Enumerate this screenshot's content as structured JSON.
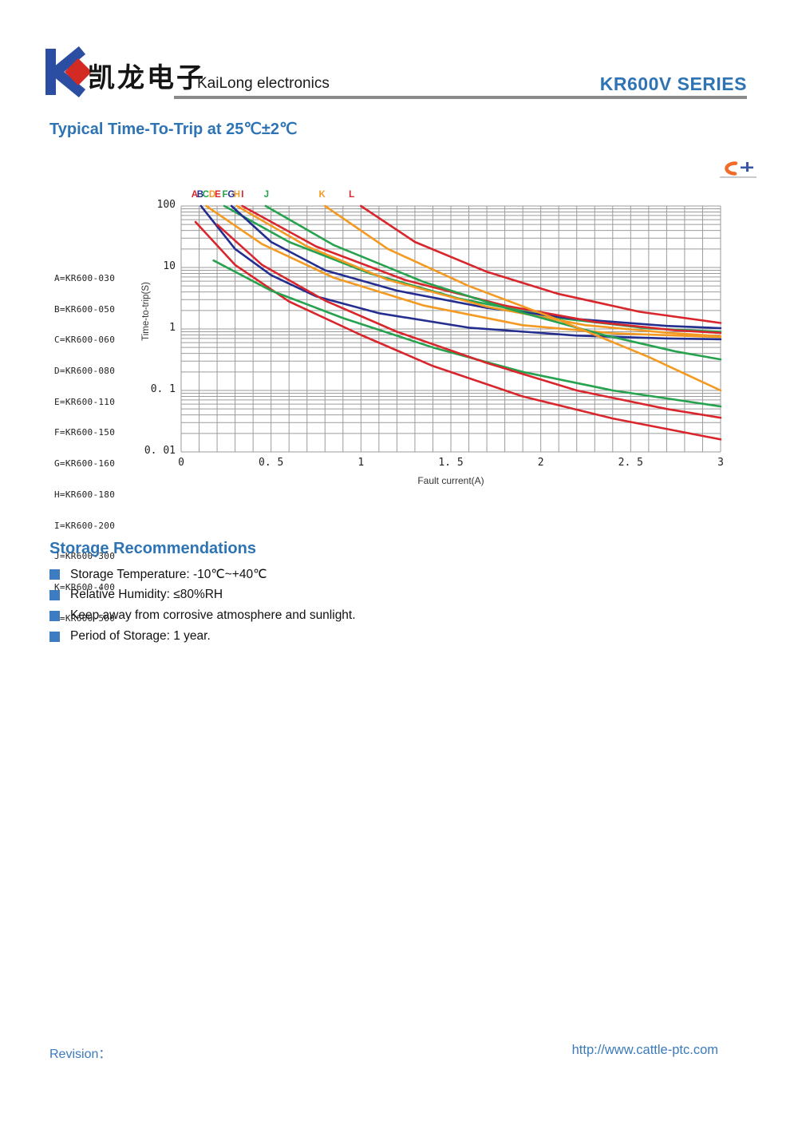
{
  "header": {
    "company_cn": "凯龙电子",
    "company_en": "KaiLong electronics",
    "series": "KR600V SERIES"
  },
  "page_title": "Typical Time-To-Trip at 25℃±2℃",
  "colors": {
    "accent_blue": "#2e74b5",
    "footer_blue": "#3b7abb",
    "logo_blue": "#2b4ea3",
    "logo_red": "#d42a24",
    "grid_gray": "#9b9b9b",
    "curve_red": "#d8262c",
    "curve_navy": "#232e8f",
    "curve_green": "#27a24f",
    "curve_orange": "#f49a22"
  },
  "chart_data": {
    "type": "line",
    "title": "",
    "xlabel": "Fault current(A)",
    "ylabel": "Time-to-trip(S)",
    "xlim": [
      0,
      3
    ],
    "ylim": [
      0.01,
      100
    ],
    "y_scale": "log",
    "x_minor_step": 0.1,
    "grid": "on",
    "legend_position": "left",
    "x_ticks": [
      "0",
      "0. 5",
      "1",
      "1. 5",
      "2",
      "2. 5",
      "3"
    ],
    "x_tick_values": [
      0,
      0.5,
      1,
      1.5,
      2,
      2.5,
      3
    ],
    "y_ticks": [
      "100",
      "10",
      "1",
      "0. 1",
      "0. 01"
    ],
    "y_tick_values": [
      100,
      10,
      1,
      0.1,
      0.01
    ],
    "legend": [
      "A=KR600-030",
      "B=KR600-050",
      "C=KR600-060",
      "D=KR600-080",
      "E=KR600-110",
      "F=KR600-150",
      "G=KR600-160",
      "H=KR600-180",
      "I=KR600-200",
      "J=KR600-300",
      "K=KR600-400",
      "L=KR600-500"
    ],
    "top_labels": [
      {
        "text": "A",
        "x": 0.075,
        "color": "#d8262c"
      },
      {
        "text": "B",
        "x": 0.106,
        "color": "#232e8f"
      },
      {
        "text": "C",
        "x": 0.137,
        "color": "#27a24f"
      },
      {
        "text": "D",
        "x": 0.173,
        "color": "#f49a22"
      },
      {
        "text": "E",
        "x": 0.204,
        "color": "#d8262c"
      },
      {
        "text": "F",
        "x": 0.244,
        "color": "#27a24f"
      },
      {
        "text": "G",
        "x": 0.279,
        "color": "#232e8f"
      },
      {
        "text": "H",
        "x": 0.31,
        "color": "#f49a22"
      },
      {
        "text": "I",
        "x": 0.341,
        "color": "#d8262c"
      },
      {
        "text": "J",
        "x": 0.474,
        "color": "#27a24f"
      },
      {
        "text": "K",
        "x": 0.784,
        "color": "#f49a22"
      },
      {
        "text": "L",
        "x": 0.948,
        "color": "#d8262c"
      }
    ],
    "series": [
      {
        "name": "A",
        "model": "KR600-030",
        "color": "#d8262c",
        "points": [
          [
            0.08,
            55
          ],
          [
            0.3,
            11
          ],
          [
            0.6,
            2.8
          ],
          [
            1.0,
            0.8
          ],
          [
            1.4,
            0.25
          ],
          [
            1.9,
            0.08
          ],
          [
            2.4,
            0.035
          ],
          [
            3,
            0.016
          ]
        ]
      },
      {
        "name": "B",
        "model": "KR600-050",
        "color": "#232e8f",
        "points": [
          [
            0.11,
            100
          ],
          [
            0.3,
            20
          ],
          [
            0.5,
            7.5
          ],
          [
            0.75,
            3.4
          ],
          [
            1.1,
            1.8
          ],
          [
            1.6,
            1.05
          ],
          [
            2.2,
            0.78
          ],
          [
            2.7,
            0.7
          ],
          [
            3,
            0.68
          ]
        ]
      },
      {
        "name": "C",
        "model": "KR600-060",
        "color": "#27a24f",
        "points": [
          [
            0.18,
            13
          ],
          [
            0.5,
            4.2
          ],
          [
            0.9,
            1.5
          ],
          [
            1.4,
            0.5
          ],
          [
            1.9,
            0.2
          ],
          [
            2.4,
            0.1
          ],
          [
            3,
            0.055
          ]
        ]
      },
      {
        "name": "D",
        "model": "KR600-080",
        "color": "#f49a22",
        "points": [
          [
            0.14,
            100
          ],
          [
            0.45,
            24
          ],
          [
            0.85,
            6.8
          ],
          [
            1.35,
            2.4
          ],
          [
            1.9,
            1.15
          ],
          [
            2.4,
            0.85
          ],
          [
            3,
            0.74
          ]
        ]
      },
      {
        "name": "E",
        "model": "KR600-110",
        "color": "#d8262c",
        "points": [
          [
            0.2,
            50
          ],
          [
            0.45,
            11
          ],
          [
            0.8,
            2.9
          ],
          [
            1.2,
            0.9
          ],
          [
            1.7,
            0.28
          ],
          [
            2.2,
            0.1
          ],
          [
            2.7,
            0.05
          ],
          [
            3,
            0.036
          ]
        ]
      },
      {
        "name": "F",
        "model": "KR600-150",
        "color": "#27a24f",
        "points": [
          [
            0.24,
            100
          ],
          [
            0.6,
            26
          ],
          [
            1.05,
            8
          ],
          [
            1.55,
            3.1
          ],
          [
            2.1,
            1.5
          ],
          [
            2.6,
            1.02
          ],
          [
            3,
            0.9
          ]
        ]
      },
      {
        "name": "G",
        "model": "KR600-160",
        "color": "#232e8f",
        "points": [
          [
            0.28,
            100
          ],
          [
            0.5,
            26
          ],
          [
            0.8,
            9
          ],
          [
            1.2,
            4.2
          ],
          [
            1.7,
            2.2
          ],
          [
            2.2,
            1.45
          ],
          [
            2.7,
            1.12
          ],
          [
            3,
            1.03
          ]
        ]
      },
      {
        "name": "H",
        "model": "KR600-180",
        "color": "#f49a22",
        "points": [
          [
            0.31,
            100
          ],
          [
            0.7,
            22
          ],
          [
            1.15,
            6.3
          ],
          [
            1.7,
            2.3
          ],
          [
            2.25,
            1.15
          ],
          [
            2.7,
            0.87
          ],
          [
            3,
            0.76
          ]
        ]
      },
      {
        "name": "I",
        "model": "KR600-200",
        "color": "#d8262c",
        "points": [
          [
            0.34,
            100
          ],
          [
            0.75,
            22
          ],
          [
            1.25,
            6.2
          ],
          [
            1.8,
            2.4
          ],
          [
            2.3,
            1.3
          ],
          [
            2.75,
            0.95
          ],
          [
            3,
            0.86
          ]
        ]
      },
      {
        "name": "J",
        "model": "KR600-300",
        "color": "#27a24f",
        "points": [
          [
            0.47,
            100
          ],
          [
            0.85,
            23
          ],
          [
            1.35,
            5.8
          ],
          [
            1.85,
            2.0
          ],
          [
            2.35,
            0.8
          ],
          [
            2.75,
            0.43
          ],
          [
            3,
            0.32
          ]
        ]
      },
      {
        "name": "K",
        "model": "KR600-400",
        "color": "#f49a22",
        "points": [
          [
            0.8,
            100
          ],
          [
            1.15,
            20
          ],
          [
            1.6,
            5.0
          ],
          [
            2.1,
            1.4
          ],
          [
            2.6,
            0.35
          ],
          [
            3,
            0.1
          ]
        ]
      },
      {
        "name": "L",
        "model": "KR600-500",
        "color": "#d8262c",
        "points": [
          [
            1.0,
            100
          ],
          [
            1.3,
            26
          ],
          [
            1.7,
            8.5
          ],
          [
            2.1,
            3.7
          ],
          [
            2.55,
            1.9
          ],
          [
            3,
            1.25
          ]
        ]
      }
    ]
  },
  "storage": {
    "heading": "Storage Recommendations",
    "items": [
      "Storage Temperature: -10℃~+40℃",
      "Relative Humidity: ≤80%RH",
      "Keep away from corrosive atmosphere and sunlight.",
      "Period of Storage: 1 year."
    ]
  },
  "footer": {
    "revision_label": "Revision：",
    "url": "http://www.cattle-ptc.com"
  }
}
